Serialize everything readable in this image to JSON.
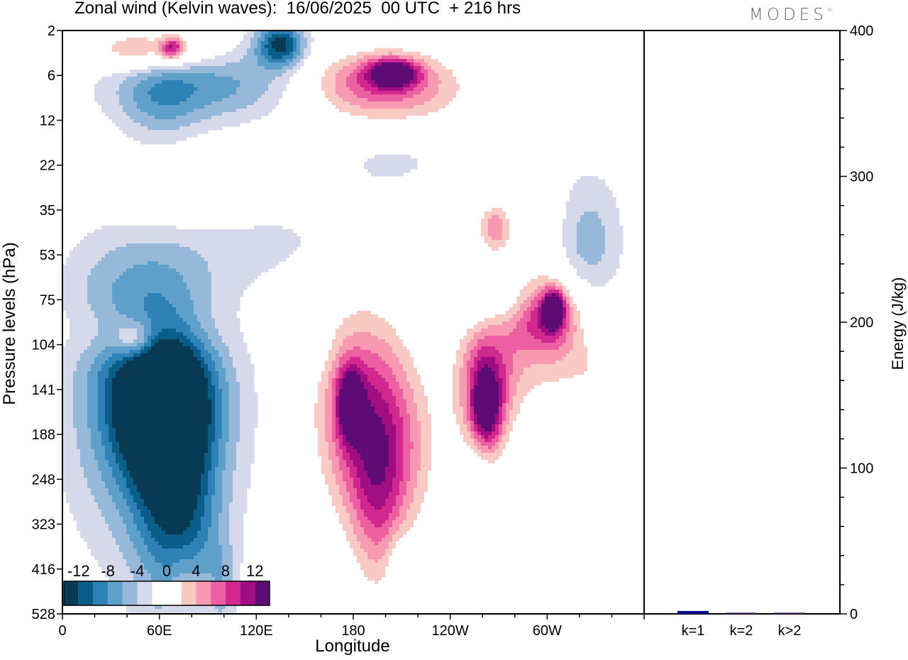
{
  "header": {
    "title": "Zonal wind (Kelvin waves):  16/06/2025  00 UTC  + 216 hrs",
    "logo": "MODES",
    "logo_mark": "®"
  },
  "chart_data": [
    {
      "type": "heatmap",
      "title": "Zonal wind (Kelvin waves):  16/06/2025  00 UTC  + 216 hrs",
      "xlabel": "Longitude",
      "ylabel": "Pressure levels (hPa)",
      "x_ticks": [
        "0",
        "60E",
        "120E",
        "180",
        "120W",
        "60W"
      ],
      "x_tick_degrees": [
        0,
        60,
        120,
        180,
        240,
        300
      ],
      "xlim": [
        0,
        360
      ],
      "y_ticks": [
        "2",
        "6",
        "12",
        "22",
        "35",
        "53",
        "75",
        "104",
        "141",
        "188",
        "248",
        "323",
        "416",
        "528"
      ],
      "colorbar": {
        "labels": [
          "-12",
          "-8",
          "-4",
          "0",
          "4",
          "8",
          "12"
        ],
        "levels": [
          -14,
          -12,
          -10,
          -8,
          -6,
          -4,
          -2,
          2,
          4,
          6,
          8,
          10,
          12,
          14
        ],
        "colors": [
          "#093a53",
          "#0c5e8a",
          "#2f82b5",
          "#5fa0cb",
          "#96b9da",
          "#d6d9ea",
          "#ffffff",
          "#ffffff",
          "#f9c9c4",
          "#f799b0",
          "#ec5fa0",
          "#d0288f",
          "#a00e82",
          "#5e0b76"
        ]
      },
      "blobs": [
        {
          "lon": 62,
          "lev": 8.3,
          "rx": 30,
          "ry": 1.5,
          "v": -13
        },
        {
          "lon": 56,
          "lev": 8.5,
          "rx": 50,
          "ry": 3.2,
          "v": -9
        },
        {
          "lon": 65,
          "lev": 10.0,
          "rx": 22,
          "ry": 3.0,
          "v": -7
        },
        {
          "lon": 83,
          "lev": 11.3,
          "rx": 20,
          "ry": 1.8,
          "v": -4
        },
        {
          "lon": 100,
          "lev": 12.4,
          "rx": 9,
          "ry": 1.0,
          "v": -3
        },
        {
          "lon": 37,
          "lev": 6.2,
          "rx": 40,
          "ry": 1.5,
          "v": -3
        },
        {
          "lon": 115,
          "lev": 4.7,
          "rx": 80,
          "ry": 1.0,
          "v": -2.5
        },
        {
          "lon": 135,
          "lev": 0.3,
          "rx": 15,
          "ry": 0.5,
          "v": -12
        },
        {
          "lon": 95,
          "lev": 1.2,
          "rx": 65,
          "ry": 0.9,
          "v": -7
        },
        {
          "lon": 60,
          "lev": 1.5,
          "rx": 25,
          "ry": 1.2,
          "v": -4
        },
        {
          "lon": 205,
          "lev": 2.9,
          "rx": 40,
          "ry": 0.7,
          "v": -3
        },
        {
          "lon": 325,
          "lev": 4.8,
          "rx": 22,
          "ry": 1.6,
          "v": -6
        },
        {
          "lon": 268,
          "lev": 6.0,
          "rx": 40,
          "ry": 0.6,
          "v": -4
        },
        {
          "lon": 345,
          "lev": 6.6,
          "rx": 30,
          "ry": 0.5,
          "v": -2.5
        },
        {
          "lon": 152,
          "lev": 7.0,
          "rx": 12,
          "ry": 0.6,
          "v": -2.5
        },
        {
          "lon": 258,
          "lev": 9.6,
          "rx": 8,
          "ry": 1.2,
          "v": -2.5
        },
        {
          "lon": 208,
          "lev": 11.8,
          "rx": 8,
          "ry": 0.7,
          "v": -2.5
        },
        {
          "lon": 185,
          "lev": 8.4,
          "rx": 30,
          "ry": 2.3,
          "v": 9
        },
        {
          "lon": 178,
          "lev": 8.3,
          "rx": 8,
          "ry": 0.8,
          "v": 11
        },
        {
          "lon": 195,
          "lev": 10.8,
          "rx": 16,
          "ry": 2.0,
          "v": 5
        },
        {
          "lon": 203,
          "lev": 9.5,
          "rx": 30,
          "ry": 2.0,
          "v": 6
        },
        {
          "lon": 262,
          "lev": 7.9,
          "rx": 18,
          "ry": 1.5,
          "v": 10
        },
        {
          "lon": 262,
          "lev": 8.5,
          "rx": 9,
          "ry": 0.9,
          "v": 11
        },
        {
          "lon": 300,
          "lev": 6.3,
          "rx": 22,
          "ry": 0.8,
          "v": 10
        },
        {
          "lon": 304,
          "lev": 6.2,
          "rx": 6,
          "ry": 0.4,
          "v": 13
        },
        {
          "lon": 300,
          "lev": 7.0,
          "rx": 40,
          "ry": 1.5,
          "v": 5
        },
        {
          "lon": 340,
          "lev": 8.8,
          "rx": 20,
          "ry": 2.0,
          "v": 3
        },
        {
          "lon": 265,
          "lev": 11.5,
          "rx": 10,
          "ry": 1.2,
          "v": 3
        },
        {
          "lon": 45,
          "lev": 6.7,
          "rx": 45,
          "ry": 0.7,
          "v": 4
        },
        {
          "lon": 45,
          "lev": 6.9,
          "rx": 12,
          "ry": 0.4,
          "v": 6.5
        },
        {
          "lon": 265,
          "lev": 4.4,
          "rx": 50,
          "ry": 1.1,
          "v": 3
        },
        {
          "lon": 268,
          "lev": 4.4,
          "rx": 7,
          "ry": 0.4,
          "v": 5
        },
        {
          "lon": 75,
          "lev": 3.7,
          "rx": 42,
          "ry": 1.0,
          "v": 3
        },
        {
          "lon": 195,
          "lev": 1.1,
          "rx": 45,
          "ry": 0.7,
          "v": 9
        },
        {
          "lon": 205,
          "lev": 0.95,
          "rx": 15,
          "ry": 0.3,
          "v": 12
        },
        {
          "lon": 200,
          "lev": 1.7,
          "rx": 70,
          "ry": 0.9,
          "v": 3
        },
        {
          "lon": 62,
          "lev": 0.45,
          "rx": 35,
          "ry": 0.5,
          "v": 7
        },
        {
          "lon": 68,
          "lev": 0.4,
          "rx": 7,
          "ry": 0.25,
          "v": 9.5
        },
        {
          "lon": 40,
          "lev": 0.45,
          "rx": 20,
          "ry": 0.4,
          "v": 3
        },
        {
          "lon": 325,
          "lev": 0.3,
          "rx": 35,
          "ry": 0.4,
          "v": 3
        },
        {
          "lon": 75,
          "lev": 12.5,
          "rx": 12,
          "ry": 1.0,
          "v": 3
        }
      ]
    },
    {
      "type": "bar",
      "ylabel": "Energy (J/kg)",
      "ylim": [
        0,
        400
      ],
      "y_ticks": [
        "0",
        "100",
        "200",
        "300",
        "400"
      ],
      "categories": [
        "k=1",
        "k=2",
        "k>2"
      ],
      "values": [
        2,
        0.8,
        0.8
      ],
      "colors": [
        "#0a0a8c",
        "#4a2060",
        "#4a2060"
      ]
    }
  ]
}
